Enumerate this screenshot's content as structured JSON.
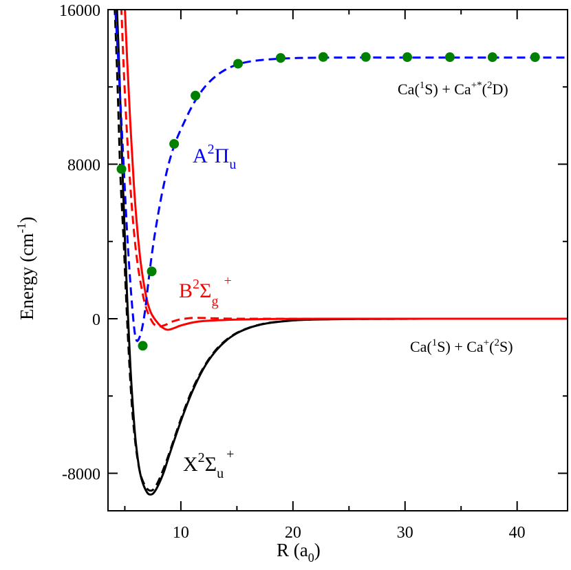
{
  "chart_data": {
    "type": "line",
    "xlabel": {
      "main": "R (a",
      "sub": "0",
      "close": ")"
    },
    "ylabel": {
      "main": "Energy (cm",
      "sup": "-1",
      "close": ")"
    },
    "xlim": [
      3.5,
      44.5
    ],
    "ylim": [
      -9800,
      16000
    ],
    "x_ticks": [
      10,
      20,
      30,
      40
    ],
    "x_tick_labels": [
      "10",
      "20",
      "30",
      "40"
    ],
    "y_ticks": [
      -8000,
      0,
      8000,
      16000
    ],
    "y_tick_labels": [
      "-8000",
      "0",
      "8000",
      "16000"
    ],
    "colors": {
      "X": "#000000",
      "B": "#ff0000",
      "A": "#0000ff",
      "points": "#008000"
    },
    "series": [
      {
        "state": "X",
        "style": "solid",
        "x": [
          4.2,
          4.5,
          4.8,
          5.0,
          5.2,
          5.5,
          5.8,
          6.0,
          6.3,
          6.6,
          7.0,
          7.3,
          7.6,
          8.0,
          8.5,
          9.0,
          10,
          11,
          12,
          13,
          14,
          15,
          16,
          17,
          18,
          20,
          22,
          25,
          30,
          35,
          40,
          44.5
        ],
        "y": [
          17500,
          13000,
          7500,
          4300,
          1200,
          -2500,
          -5200,
          -6500,
          -7800,
          -8500,
          -9000,
          -9100,
          -9000,
          -8600,
          -7900,
          -7000,
          -5300,
          -3800,
          -2600,
          -1750,
          -1150,
          -750,
          -490,
          -320,
          -210,
          -90,
          -40,
          -15,
          -4,
          -1,
          0,
          0
        ]
      },
      {
        "state": "X",
        "style": "dashed",
        "x": [
          4.0,
          4.3,
          4.6,
          4.9,
          5.1,
          5.4,
          5.7,
          6.0,
          6.3,
          6.6,
          7.0,
          7.3,
          7.6,
          8.0,
          8.5,
          9.0,
          10,
          11,
          12,
          13,
          14,
          15,
          16,
          17,
          18,
          20,
          22,
          25,
          30,
          35,
          40,
          44.5
        ],
        "y": [
          17500,
          13000,
          7500,
          4000,
          1300,
          -2300,
          -5000,
          -6700,
          -7800,
          -8400,
          -8800,
          -8900,
          -8800,
          -8400,
          -7700,
          -6900,
          -5200,
          -3700,
          -2550,
          -1700,
          -1120,
          -730,
          -480,
          -310,
          -200,
          -85,
          -35,
          -12,
          -3,
          -1,
          0,
          0
        ]
      },
      {
        "state": "B",
        "style": "solid",
        "x": [
          4.9,
          5.2,
          5.5,
          5.8,
          6.1,
          6.4,
          6.7,
          7.0,
          7.3,
          7.6,
          8.0,
          8.3,
          8.7,
          9.0,
          9.5,
          10,
          11,
          12,
          14,
          17,
          20,
          25,
          30,
          35,
          40,
          44.5
        ],
        "y": [
          17500,
          13500,
          10000,
          7000,
          4700,
          3000,
          1800,
          900,
          350,
          40,
          -260,
          -430,
          -560,
          -560,
          -460,
          -350,
          -200,
          -120,
          -60,
          -20,
          -5,
          0,
          0,
          0,
          0,
          0
        ]
      },
      {
        "state": "B",
        "style": "dashed",
        "x": [
          4.6,
          4.9,
          5.2,
          5.5,
          5.8,
          6.1,
          6.4,
          6.7,
          7.0,
          7.3,
          7.6,
          8.0,
          8.3,
          8.7,
          9.0,
          9.5,
          10,
          11,
          12,
          13,
          15,
          18,
          20,
          25,
          30,
          40,
          44.5
        ],
        "y": [
          17500,
          13000,
          9500,
          6800,
          4600,
          3000,
          1900,
          1000,
          400,
          0,
          -280,
          -400,
          -380,
          -300,
          -200,
          -100,
          -30,
          40,
          40,
          20,
          0,
          0,
          0,
          0,
          0,
          0,
          0
        ]
      },
      {
        "state": "A",
        "style": "dashed",
        "x": [
          4.1,
          4.4,
          4.8,
          5.2,
          5.5,
          5.8,
          6.0,
          6.2,
          6.5,
          6.8,
          7.1,
          7.5,
          8.0,
          8.5,
          9.0,
          9.5,
          10,
          11,
          12,
          13,
          14,
          15,
          16,
          17,
          18,
          20,
          22,
          25,
          30,
          35,
          40,
          44.5
        ],
        "y": [
          16500,
          13500,
          9000,
          4500,
          1800,
          -300,
          -1050,
          -1100,
          -600,
          400,
          1900,
          3700,
          5500,
          7000,
          8200,
          9100,
          9800,
          11000,
          11900,
          12500,
          12900,
          13150,
          13300,
          13380,
          13430,
          13490,
          13510,
          13520,
          13520,
          13520,
          13520,
          13520
        ]
      }
    ],
    "points": {
      "x": [
        4.7,
        6.6,
        7.4,
        9.4,
        11.3,
        15.1,
        18.9,
        22.7,
        26.5,
        30.2,
        34.0,
        37.8,
        41.6
      ],
      "y": [
        7750,
        -1400,
        2450,
        9050,
        11550,
        13200,
        13500,
        13550,
        13550,
        13540,
        13540,
        13540,
        13540
      ]
    }
  },
  "annotations": {
    "A_label": {
      "main": "A",
      "sup": "2",
      "sym": "Π",
      "sub": "u"
    },
    "B_label": {
      "main": "B",
      "sup": "2",
      "sym": "Σ",
      "sub": "g",
      "sup2": "+"
    },
    "X_label": {
      "main": "X",
      "sup": "2",
      "sym": "Σ",
      "sub": "u",
      "sup2": "+"
    },
    "upper_asymptote": {
      "a": "Ca(",
      "b": "1",
      "c": "S) + Ca",
      "d": "+*",
      "e": "(",
      "f": "2",
      "g": "D)"
    },
    "lower_asymptote": {
      "a": "Ca(",
      "b": "1",
      "c": "S) + Ca",
      "d": "+",
      "e": "(",
      "f": "2",
      "g": "S)"
    }
  }
}
